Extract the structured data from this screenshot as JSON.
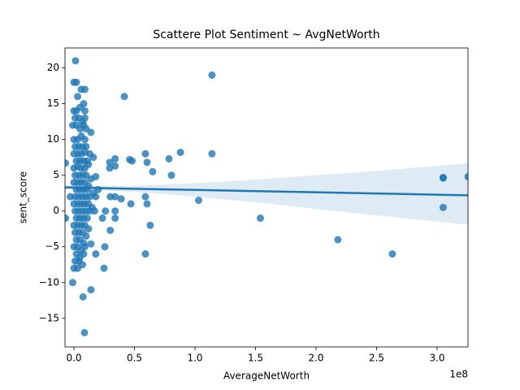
{
  "chart_data": {
    "type": "scatter",
    "title": "Scattere Plot Sentiment ~ AvgNetWorth",
    "x_label": "AverageNetWorth",
    "y_label": "sent_score",
    "x_offset_label": "1e8",
    "color": "#1f77b4",
    "xlim": [
      -7400000,
      325500000
    ],
    "ylim": [
      -19,
      22.8
    ],
    "xticks": [
      {
        "value": 0,
        "label": "0.0"
      },
      {
        "value": 50000000,
        "label": "0.5"
      },
      {
        "value": 100000000,
        "label": "1.0"
      },
      {
        "value": 150000000,
        "label": "1.5"
      },
      {
        "value": 200000000,
        "label": "2.0"
      },
      {
        "value": 250000000,
        "label": "2.5"
      },
      {
        "value": 300000000,
        "label": "3.0"
      }
    ],
    "yticks": [
      {
        "value": -15,
        "label": "−15"
      },
      {
        "value": -10,
        "label": "−10"
      },
      {
        "value": -5,
        "label": "−5"
      },
      0,
      5,
      10,
      15,
      20
    ],
    "x": [
      41600000.0,
      114000000.0,
      114000000.0,
      88000000.0,
      78500000.0,
      80500000.0,
      65000000.0,
      59000000.0,
      60400000.0,
      46000000.0,
      48000000.0,
      59000000.0,
      60400000.0,
      63000000.0,
      59000000.0,
      47000000.0,
      39000000.0,
      34000000.0,
      34000000.0,
      34000000.0,
      30000000.0,
      30000000.0,
      29500000.0,
      29500000.0,
      34000000.0,
      34000000.0,
      25500000.0,
      24800000.0,
      23500000.0,
      26000000.0,
      103000000.0,
      154000000.0,
      218000000.0,
      263000000.0,
      305000000.0,
      305000000.0,
      305000000.0,
      325500000.0,
      -7000000.0,
      -7000000.0,
      1300000.0,
      0,
      2000000.0,
      6000000.0,
      9000000.0,
      3000000.0,
      0,
      2000000.0,
      5000000.0,
      8000000.0,
      9000000.0,
      1000000.0,
      4000000.0,
      7000000.0,
      9000000.0,
      -1000000.0,
      2000000.0,
      5000000.0,
      8000000.0,
      10000000.0,
      14000000.0,
      0,
      3000000.0,
      6000000.0,
      9000000.0,
      1000000.0,
      4000000.0,
      7000000.0,
      10000000.0,
      0,
      3000000.0,
      6000000.0,
      9000000.0,
      13000000.0,
      2000000.0,
      5000000.0,
      8000000.0,
      11000000.0,
      16000000.0,
      0,
      3000000.0,
      6000000.0,
      9000000.0,
      12000000.0,
      1000000.0,
      4000000.0,
      7000000.0,
      10000000.0,
      14000000.0,
      18000000.0,
      0,
      3000000.0,
      6000000.0,
      9000000.0,
      12000000.0,
      2000000.0,
      5000000.0,
      8000000.0,
      11000000.0,
      16000000.0,
      20000000.0,
      -3000000.0,
      1000000.0,
      4000000.0,
      7000000.0,
      10000000.0,
      13000000.0,
      18000000.0,
      0,
      3000000.0,
      6000000.0,
      9000000.0,
      12000000.0,
      15000000.0,
      1000000.0,
      4000000.0,
      7000000.0,
      10000000.0,
      13000000.0,
      17000000.0,
      2000000.0,
      5000000.0,
      8000000.0,
      11000000.0,
      0,
      3000000.0,
      6000000.0,
      9000000.0,
      12000000.0,
      1000000.0,
      4000000.0,
      7000000.0,
      10000000.0,
      2000000.0,
      5000000.0,
      8000000.0,
      14000000.0,
      0,
      3000000.0,
      6000000.0,
      9000000.0,
      18000000.0,
      2000000.0,
      5000000.0,
      8000000.0,
      1000000.0,
      4000000.0,
      7000000.0,
      0,
      3000000.0,
      -1000000.0,
      7500000.0,
      8700000.0,
      14000000.0
    ],
    "values": [
      16,
      19,
      8,
      8.2,
      7.3,
      5,
      5.5,
      8,
      6.8,
      7.2,
      7,
      2,
      1,
      -2,
      -6,
      1,
      1.7,
      2,
      0,
      -1,
      2,
      -2.7,
      6.8,
      6,
      7.3,
      6.3,
      -5,
      -8,
      -1,
      0,
      1.5,
      -1,
      -4,
      -6,
      4.6,
      4.7,
      0.5,
      4.8,
      6.7,
      -1,
      21,
      18,
      18,
      17,
      17,
      16,
      14,
      14,
      14.5,
      15,
      14,
      13,
      13,
      12.5,
      13,
      12,
      12,
      11.5,
      12,
      11.5,
      11,
      10,
      10,
      10.5,
      10,
      9,
      9,
      9,
      9,
      8,
      8,
      8,
      8.2,
      8,
      7,
      7,
      7,
      7,
      7.5,
      6,
      6.2,
      6,
      6,
      6.5,
      5,
      5,
      5,
      5,
      4.5,
      4.8,
      4,
      4,
      4,
      4,
      3.5,
      3,
      3,
      3,
      3,
      2.5,
      3,
      2,
      2,
      2,
      2,
      2,
      2,
      2,
      1,
      1,
      1,
      1,
      1,
      0.5,
      0,
      0,
      0,
      0,
      0,
      0,
      -1,
      -1,
      -1,
      -1,
      -2,
      -2,
      -2,
      -2,
      -2.5,
      -3,
      -3,
      -3,
      -3.5,
      -4,
      -4,
      -4.5,
      -4.6,
      -5,
      -5,
      -5.5,
      -5,
      -6,
      -6,
      -6.5,
      -6,
      -7,
      -7,
      -7.5,
      -8,
      -8,
      -10,
      -12,
      -17,
      -11
    ],
    "regression": {
      "x": [
        -7400000,
        50000000,
        100000000,
        150000000,
        200000000,
        250000000,
        300000000,
        325500000
      ],
      "y": [
        3.3,
        3.11,
        2.95,
        2.78,
        2.62,
        2.45,
        2.29,
        2.2
      ],
      "upper": [
        3.6,
        3.5,
        3.9,
        4.4,
        5.0,
        5.6,
        6.3,
        6.7
      ],
      "lower": [
        3.0,
        2.7,
        2.0,
        1.2,
        0.3,
        -0.6,
        -1.5,
        -1.9
      ]
    }
  }
}
